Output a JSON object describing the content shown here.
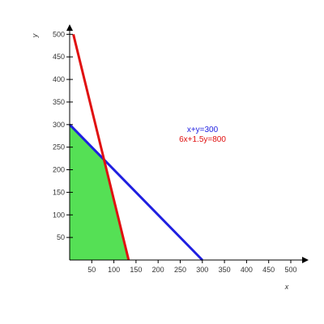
{
  "chart_data": {
    "type": "line",
    "xlabel": "x",
    "ylabel": "y",
    "xlim": [
      0,
      500
    ],
    "ylim": [
      0,
      520
    ],
    "x_ticks": [
      50,
      100,
      150,
      200,
      250,
      300,
      350,
      400,
      450,
      500
    ],
    "y_ticks": [
      50,
      100,
      150,
      200,
      250,
      300,
      350,
      400,
      450,
      500
    ],
    "grid": false,
    "legend_position": "upper-right",
    "series": [
      {
        "name": "x+y=300",
        "color": "#1f1fe0",
        "points": [
          [
            0,
            300
          ],
          [
            300,
            0
          ]
        ]
      },
      {
        "name": "6x+1.5y=800",
        "color": "#e01010",
        "points": [
          [
            0,
            533.33
          ],
          [
            133.33,
            0
          ]
        ]
      }
    ],
    "feasible_region": {
      "color": "#55e055",
      "vertices": [
        [
          0,
          0
        ],
        [
          0,
          300
        ],
        [
          77.78,
          222.22
        ],
        [
          133.33,
          0
        ]
      ]
    }
  }
}
